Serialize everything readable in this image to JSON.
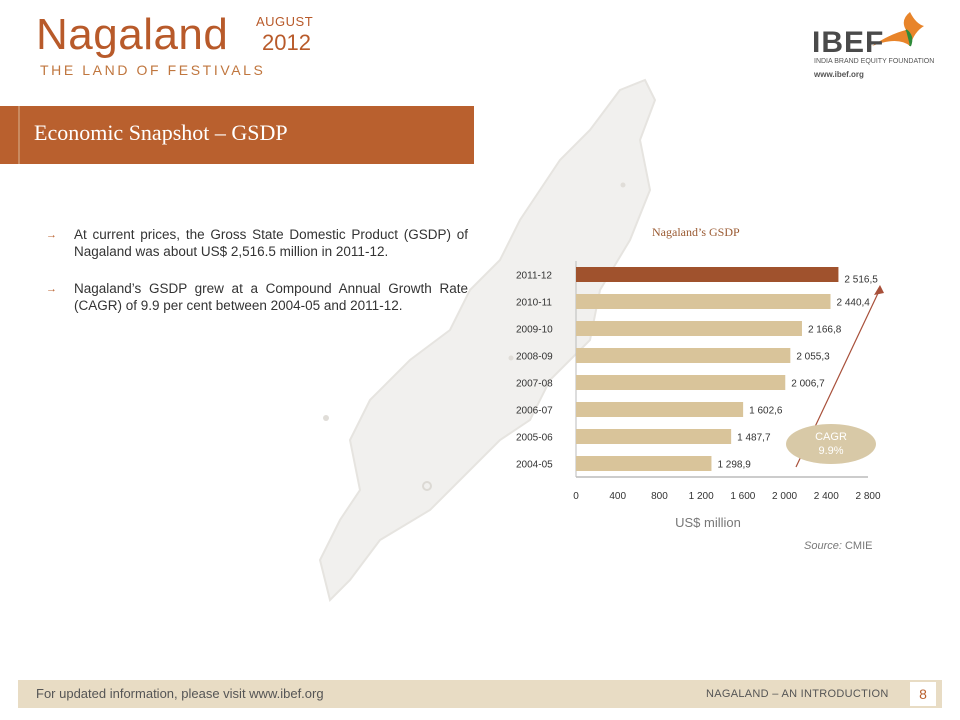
{
  "header": {
    "title": "Nagaland",
    "subtitle": "THE LAND OF FESTIVALS",
    "month": "AUGUST",
    "year": "2012"
  },
  "logo": {
    "name": "IBEF",
    "tagline": "INDIA BRAND EQUITY FOUNDATION",
    "url": "www.ibef.org"
  },
  "banner": {
    "title": "Economic Snapshot – GSDP"
  },
  "bullets": [
    "At current prices, the Gross State Domestic Product (GSDP) of Nagaland was about US$ 2,516.5 million in 2011-12.",
    "Nagaland’s GSDP grew at a Compound Annual Growth Rate (CAGR) of 9.9 per cent between 2004-05 and 2011-12."
  ],
  "chart_data": {
    "type": "bar",
    "orientation": "horizontal",
    "title": "Nagaland’s GSDP",
    "categories": [
      "2011-12",
      "2010-11",
      "2009-10",
      "2008-09",
      "2007-08",
      "2006-07",
      "2005-06",
      "2004-05"
    ],
    "values": [
      2516.5,
      2440.4,
      2166.8,
      2055.3,
      2006.7,
      1602.6,
      1487.7,
      1298.9
    ],
    "value_labels": [
      "2 516,5",
      "2 440,4",
      "2 166,8",
      "2 055,3",
      "2 006,7",
      "1 602,6",
      "1 487,7",
      "1 298,9"
    ],
    "xlabel": "US$ million",
    "ylabel": "",
    "xlim": [
      0,
      2800
    ],
    "xticks": [
      "0",
      "400",
      "800",
      "1 200",
      "1 600",
      "2 000",
      "2 400",
      "2 800"
    ],
    "grid": false,
    "colors": {
      "highlight": "#a0522d",
      "bar": "#d9c49a"
    },
    "annotation": {
      "line1": "CAGR",
      "line2": "9.9%"
    }
  },
  "source": {
    "label": "Source:",
    "value": "CMIE"
  },
  "footer": {
    "note": "For updated information, please visit www.ibef.org",
    "section": "NAGALAND – AN INTRODUCTION",
    "page": "8"
  }
}
